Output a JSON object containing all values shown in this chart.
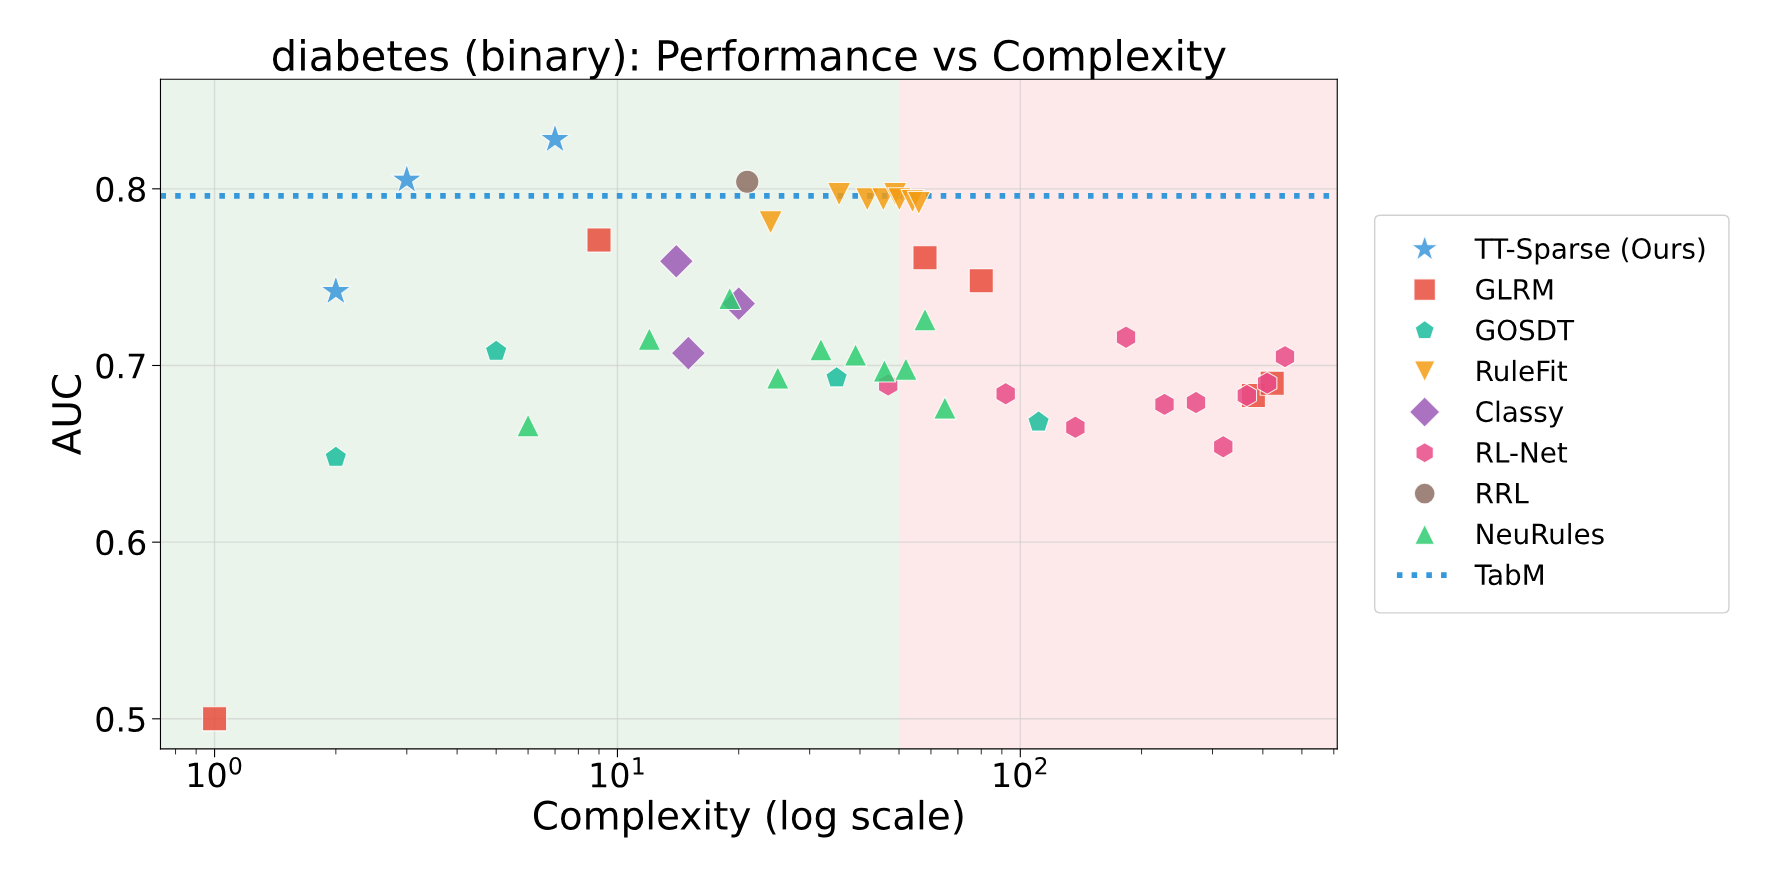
{
  "chart_data": {
    "type": "scatter",
    "title": "diabetes (binary): Performance vs Complexity",
    "xlabel": "Complexity (log scale)",
    "ylabel": "AUC",
    "log": "x",
    "xlim": [
      0.734,
      612
    ],
    "ylim": [
      0.483,
      0.862
    ],
    "xticks": [
      {
        "value": 1,
        "label": "10$^{0}$"
      },
      {
        "value": 10,
        "label": "10$^{1}$"
      },
      {
        "value": 100,
        "label": "10$^{2}$"
      }
    ],
    "yticks": [
      0.5,
      0.6,
      0.7,
      0.8
    ],
    "grid": true,
    "legend": "right",
    "series": [
      {
        "name": "TT-Sparse (Ours)",
        "color": "#3a96db",
        "marker": "star",
        "x": [
          2,
          3,
          7
        ],
        "values": [
          0.742,
          0.805,
          0.828
        ]
      },
      {
        "name": "GLRM",
        "color": "#e74c3c",
        "marker": "square",
        "x": [
          1,
          9,
          58,
          80,
          379,
          422
        ],
        "values": [
          0.5,
          0.771,
          0.761,
          0.748,
          0.683,
          0.69
        ]
      },
      {
        "name": "GOSDT",
        "color": "#1abc9c",
        "x": [
          2,
          5,
          35,
          111
        ],
        "values": [
          0.648,
          0.708,
          0.693,
          0.668
        ]
      },
      {
        "name": "RuleFit",
        "color": "#f39c12",
        "marker": "triangle_down",
        "x": [
          24,
          35.5,
          41.7,
          45.7,
          48.9,
          50.1,
          54,
          56
        ],
        "values": [
          0.781,
          0.797,
          0.794,
          0.794,
          0.797,
          0.794,
          0.793,
          0.792
        ]
      },
      {
        "name": "Classy",
        "color": "#9b59b6",
        "marker": "diamond",
        "x": [
          14,
          15,
          20
        ],
        "values": [
          0.759,
          0.707,
          0.735
        ]
      },
      {
        "name": "RL-Net",
        "color": "#e84a86",
        "x": [
          47,
          92,
          137,
          183,
          228,
          273,
          319,
          365,
          410,
          454
        ],
        "values": [
          0.689,
          0.684,
          0.665,
          0.716,
          0.678,
          0.679,
          0.654,
          0.683,
          0.69,
          0.705
        ]
      },
      {
        "name": "RRL",
        "color": "#8d6e63",
        "marker": "circle",
        "x": [
          21
        ],
        "values": [
          0.804
        ]
      },
      {
        "name": "NeuRules",
        "color": "#2ecc71",
        "marker": "triangle",
        "x": [
          6,
          12,
          19,
          25,
          32,
          39,
          46,
          52,
          58,
          65
        ],
        "values": [
          0.666,
          0.715,
          0.738,
          0.693,
          0.709,
          0.706,
          0.697,
          0.698,
          0.726,
          0.676
        ]
      }
    ],
    "ref_lines": [
      {
        "axis": "y",
        "value": 0.796,
        "label": "TabM",
        "color": "#3498db",
        "line_style": "dotted"
      }
    ],
    "bands": [
      {
        "axis": "x",
        "from": 0.734,
        "to": 50,
        "color": "#eaf4ea"
      },
      {
        "axis": "x",
        "from": 50,
        "to": 612,
        "color": "#fde9e9"
      }
    ]
  }
}
